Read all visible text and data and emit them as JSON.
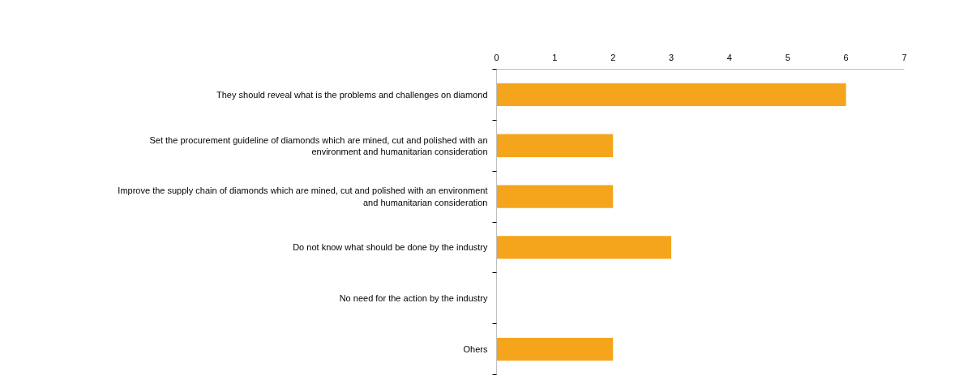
{
  "chart_data": {
    "type": "bar",
    "orientation": "horizontal",
    "categories": [
      "They should reveal what is the problems and challenges on diamond",
      "Set the procurement guideline of diamonds which are mined, cut and polished with an\nenvironment and humanitarian consideration",
      "Improve the supply chain of diamonds which are mined, cut and polished with an environment\nand humanitarian consideration",
      "Do not know what should be done by the industry",
      "No need for the action by the industry",
      "Ohers"
    ],
    "values": [
      6,
      2,
      2,
      3,
      0,
      2
    ],
    "color": "#f5a51c",
    "xlim": [
      0,
      7
    ],
    "xticks": [
      0,
      1,
      2,
      3,
      4,
      5,
      6,
      7
    ],
    "grid": false
  }
}
